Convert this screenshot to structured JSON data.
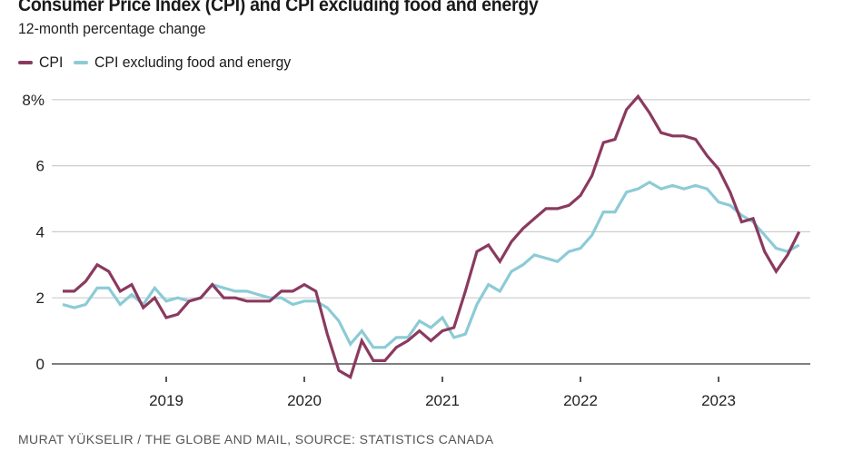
{
  "title": "Consumer Price Index (CPI) and CPI excluding food and energy",
  "subtitle": "12-month percentage change",
  "source": "MURAT YÜKSELIR / THE GLOBE AND MAIL, SOURCE: STATISTICS CANADA",
  "legend": [
    {
      "label": "CPI",
      "color": "#8a3a5f"
    },
    {
      "label": "CPI excluding food and energy",
      "color": "#8ccbd6"
    }
  ],
  "chart_data": {
    "type": "line",
    "title": "Consumer Price Index (CPI) and CPI excluding food and energy",
    "subtitle": "12-month percentage change",
    "xlabel": "",
    "ylabel": "",
    "x_start": "2018-04",
    "x_end": "2023-08",
    "x_frequency": "monthly",
    "x_tick_labels": [
      "2019",
      "2020",
      "2021",
      "2022",
      "2023"
    ],
    "y_tick_labels": [
      "8%",
      "6",
      "4",
      "2",
      "0"
    ],
    "y_ticks": [
      8,
      6,
      4,
      2,
      0
    ],
    "ylim": [
      -0.5,
      8.2
    ],
    "grid": true,
    "legend_position": "top-left",
    "series": [
      {
        "name": "CPI",
        "color": "#8a3a5f",
        "values": [
          2.2,
          2.2,
          2.5,
          3.0,
          2.8,
          2.2,
          2.4,
          1.7,
          2.0,
          1.4,
          1.5,
          1.9,
          2.0,
          2.4,
          2.0,
          2.0,
          1.9,
          1.9,
          1.9,
          2.2,
          2.2,
          2.4,
          2.2,
          0.9,
          -0.2,
          -0.4,
          0.7,
          0.1,
          0.1,
          0.5,
          0.7,
          1.0,
          0.7,
          1.0,
          1.1,
          2.2,
          3.4,
          3.6,
          3.1,
          3.7,
          4.1,
          4.4,
          4.7,
          4.7,
          4.8,
          5.1,
          5.7,
          6.7,
          6.8,
          7.7,
          8.1,
          7.6,
          7.0,
          6.9,
          6.9,
          6.8,
          6.3,
          5.9,
          5.2,
          4.3,
          4.4,
          3.4,
          2.8,
          3.3,
          4.0
        ]
      },
      {
        "name": "CPI excluding food and energy",
        "color": "#8ccbd6",
        "values": [
          1.8,
          1.7,
          1.8,
          2.3,
          2.3,
          1.8,
          2.1,
          1.8,
          2.3,
          1.9,
          2.0,
          1.9,
          2.0,
          2.4,
          2.3,
          2.2,
          2.2,
          2.1,
          2.0,
          2.0,
          1.8,
          1.9,
          1.9,
          1.7,
          1.3,
          0.6,
          1.0,
          0.5,
          0.5,
          0.8,
          0.8,
          1.3,
          1.1,
          1.4,
          0.8,
          0.9,
          1.8,
          2.4,
          2.2,
          2.8,
          3.0,
          3.3,
          3.2,
          3.1,
          3.4,
          3.5,
          3.9,
          4.6,
          4.6,
          5.2,
          5.3,
          5.5,
          5.3,
          5.4,
          5.3,
          5.4,
          5.3,
          4.9,
          4.8,
          4.5,
          4.3,
          3.9,
          3.5,
          3.4,
          3.6
        ]
      }
    ]
  }
}
